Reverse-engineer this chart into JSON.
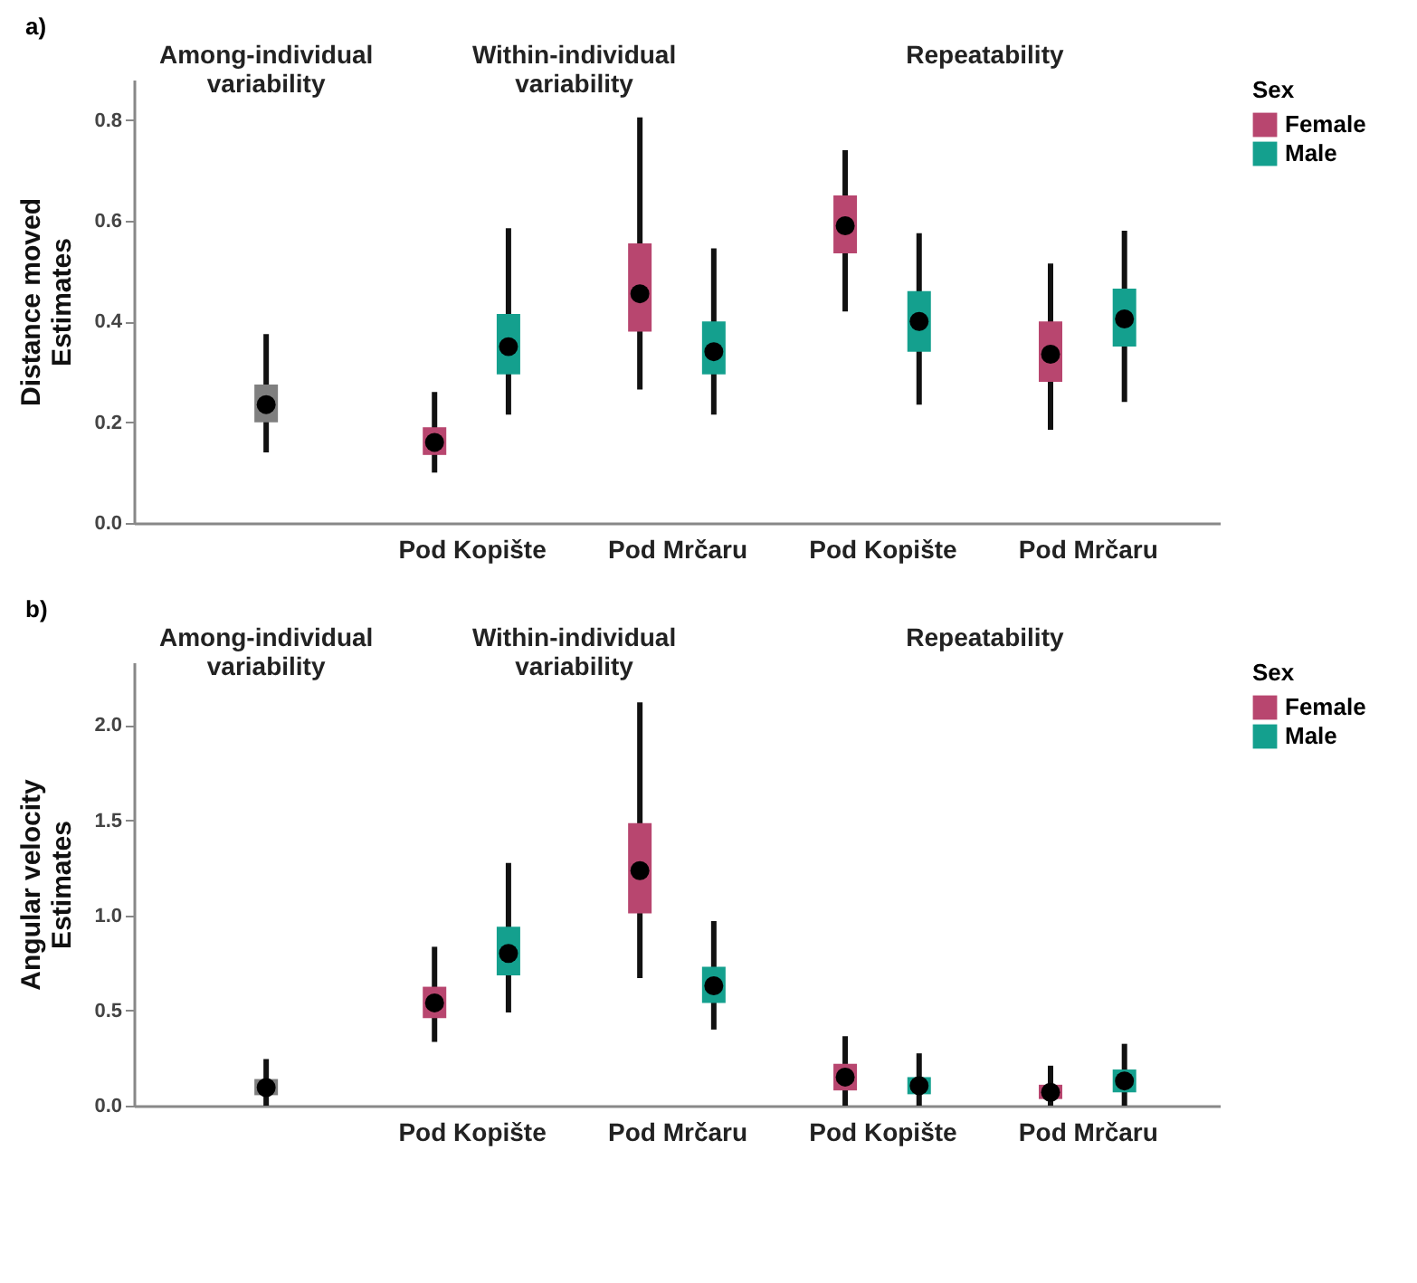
{
  "chart_data": [
    {
      "type": "box",
      "title": "a)",
      "ylabel": "Distance moved\nEstimates",
      "legend_title": "Sex",
      "legend": "right",
      "grid": false,
      "categories": [
        null,
        "Pod Kopište",
        "Pod Mrčaru",
        "Pod Kopište",
        "Pod Mrčaru"
      ],
      "annotations": [
        "Among-individual\nvariability",
        "Within-individual\nvariability",
        "Repeatability"
      ],
      "ylim": [
        0,
        0.88
      ],
      "yticks": [
        {
          "value": 0,
          "label": "0.0"
        },
        0.2,
        0.4,
        0.6,
        0.8
      ],
      "series": [
        {
          "color": "#7f7f7f",
          "boxes": [
            {
              "low": 0.14,
              "q1": 0.2,
              "median": 0.235,
              "q3": 0.275,
              "high": 0.375
            },
            null,
            null,
            null,
            null
          ]
        },
        {
          "name": "Female",
          "color": "#b8466f",
          "boxes": [
            null,
            {
              "low": 0.1,
              "q1": 0.135,
              "median": 0.16,
              "q3": 0.19,
              "high": 0.26
            },
            {
              "low": 0.265,
              "q1": 0.38,
              "median": 0.455,
              "q3": 0.555,
              "high": 0.805
            },
            {
              "low": 0.42,
              "q1": 0.535,
              "median": 0.59,
              "q3": 0.65,
              "high": 0.74
            },
            {
              "low": 0.185,
              "q1": 0.28,
              "median": 0.335,
              "q3": 0.4,
              "high": 0.515
            }
          ]
        },
        {
          "name": "Male",
          "color": "#14a08e",
          "boxes": [
            null,
            {
              "low": 0.215,
              "q1": 0.295,
              "median": 0.35,
              "q3": 0.415,
              "high": 0.585
            },
            {
              "low": 0.215,
              "q1": 0.295,
              "median": 0.34,
              "q3": 0.4,
              "high": 0.545
            },
            {
              "low": 0.235,
              "q1": 0.34,
              "median": 0.4,
              "q3": 0.46,
              "high": 0.575
            },
            {
              "low": 0.24,
              "q1": 0.35,
              "median": 0.405,
              "q3": 0.465,
              "high": 0.58
            }
          ]
        }
      ]
    },
    {
      "type": "box",
      "title": "b)",
      "ylabel": "Angular velocity\nEstimates",
      "legend_title": "Sex",
      "legend": "right",
      "grid": false,
      "categories": [
        null,
        "Pod Kopište",
        "Pod Mrčaru",
        "Pod Kopište",
        "Pod Mrčaru"
      ],
      "annotations": [
        "Among-individual\nvariability",
        "Within-individual\nvariability",
        "Repeatability"
      ],
      "ylim": [
        0,
        2.33
      ],
      "yticks": [
        {
          "value": 0,
          "label": "0.0"
        },
        0.5,
        {
          "value": 1,
          "label": "1.0"
        },
        1.5,
        {
          "value": 2,
          "label": "2.0"
        }
      ],
      "series": [
        {
          "color": "#7f7f7f",
          "boxes": [
            {
              "low": 0.0,
              "q1": 0.055,
              "median": 0.095,
              "q3": 0.14,
              "high": 0.245
            },
            null,
            null,
            null,
            null
          ]
        },
        {
          "name": "Female",
          "color": "#b8466f",
          "boxes": [
            null,
            {
              "low": 0.335,
              "q1": 0.46,
              "median": 0.54,
              "q3": 0.625,
              "high": 0.835
            },
            {
              "low": 0.67,
              "q1": 1.01,
              "median": 1.235,
              "q3": 1.485,
              "high": 2.12
            },
            {
              "low": 0.0,
              "q1": 0.08,
              "median": 0.15,
              "q3": 0.22,
              "high": 0.365
            },
            {
              "low": 0.0,
              "q1": 0.035,
              "median": 0.07,
              "q3": 0.11,
              "high": 0.21
            }
          ]
        },
        {
          "name": "Male",
          "color": "#14a08e",
          "boxes": [
            null,
            {
              "low": 0.49,
              "q1": 0.685,
              "median": 0.8,
              "q3": 0.94,
              "high": 1.275
            },
            {
              "low": 0.4,
              "q1": 0.54,
              "median": 0.63,
              "q3": 0.73,
              "high": 0.97
            },
            {
              "low": 0.0,
              "q1": 0.06,
              "median": 0.105,
              "q3": 0.15,
              "high": 0.275
            },
            {
              "low": 0.0,
              "q1": 0.07,
              "median": 0.13,
              "q3": 0.19,
              "high": 0.325
            }
          ]
        }
      ]
    }
  ]
}
